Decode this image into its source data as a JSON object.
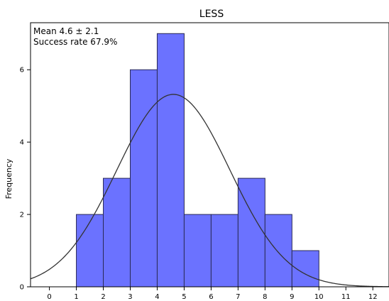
{
  "chart_data": {
    "type": "bar",
    "title": "LESS",
    "annotations": [
      "Mean 4.6 ± 2.1",
      "Success rate 67.9%"
    ],
    "ylabel": "Frequency",
    "xlabel": "",
    "bins": [
      {
        "x0": 1,
        "x1": 2,
        "count": 2
      },
      {
        "x0": 2,
        "x1": 3,
        "count": 3
      },
      {
        "x0": 3,
        "x1": 4,
        "count": 6
      },
      {
        "x0": 4,
        "x1": 5,
        "count": 7
      },
      {
        "x0": 5,
        "x1": 6,
        "count": 2
      },
      {
        "x0": 6,
        "x1": 7,
        "count": 2
      },
      {
        "x0": 7,
        "x1": 8,
        "count": 3
      },
      {
        "x0": 8,
        "x1": 9,
        "count": 2
      },
      {
        "x0": 9,
        "x1": 10,
        "count": 1
      }
    ],
    "xlim": [
      -0.7,
      12.6
    ],
    "ylim": [
      0,
      7.3
    ],
    "xticks": [
      0,
      1,
      2,
      3,
      4,
      5,
      6,
      7,
      8,
      9,
      10,
      11,
      12
    ],
    "yticks": [
      0,
      2,
      4,
      6
    ],
    "normal_curve": {
      "mean": 4.6,
      "sd": 2.1,
      "n": 28
    },
    "grid": false,
    "colors": {
      "bar_fill": "#6b72ff",
      "bar_stroke": "#2a2a55",
      "curve": "#333333"
    }
  }
}
